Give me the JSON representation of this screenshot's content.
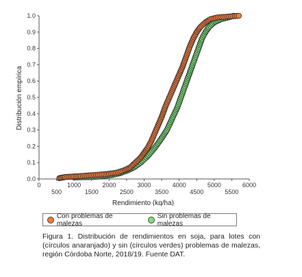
{
  "chart_data": {
    "type": "scatter",
    "title": "",
    "xlabel": "Rendimiento (kg/ha)",
    "ylabel": "Distribución empírica",
    "xlim": [
      0,
      6000
    ],
    "ylim": [
      0,
      1.0
    ],
    "x_ticks": [
      "0",
      "500",
      "1000",
      "1500",
      "2000",
      "2500",
      "3000",
      "3500",
      "4000",
      "4500",
      "5000",
      "5500",
      "6000"
    ],
    "y_ticks": [
      "0.0",
      "0.1",
      "0.2",
      "0.3",
      "0.4",
      "0.5",
      "0.6",
      "0.7",
      "0.8",
      "0.9",
      "1.0"
    ],
    "grid": false,
    "legend_position": "bottom",
    "series": [
      {
        "name": "Con problemas de malezas",
        "color": "#f07a3c",
        "points": [
          [
            580,
            0.005
          ],
          [
            650,
            0.008
          ],
          [
            760,
            0.012
          ],
          [
            1200,
            0.018
          ],
          [
            1950,
            0.03
          ],
          [
            2250,
            0.04
          ],
          [
            2450,
            0.055
          ],
          [
            2600,
            0.07
          ],
          [
            2700,
            0.09
          ],
          [
            2800,
            0.11
          ],
          [
            2900,
            0.13
          ],
          [
            3000,
            0.16
          ],
          [
            3100,
            0.19
          ],
          [
            3200,
            0.23
          ],
          [
            3300,
            0.28
          ],
          [
            3400,
            0.33
          ],
          [
            3500,
            0.38
          ],
          [
            3600,
            0.44
          ],
          [
            3700,
            0.49
          ],
          [
            3800,
            0.54
          ],
          [
            3900,
            0.59
          ],
          [
            4000,
            0.64
          ],
          [
            4100,
            0.69
          ],
          [
            4200,
            0.75
          ],
          [
            4300,
            0.81
          ],
          [
            4400,
            0.86
          ],
          [
            4500,
            0.9
          ],
          [
            4600,
            0.93
          ],
          [
            4750,
            0.96
          ],
          [
            4900,
            0.98
          ],
          [
            5100,
            0.99
          ],
          [
            5700,
            1.0
          ]
        ]
      },
      {
        "name": "Sin problemas de malezas",
        "color": "#7be07b",
        "points": [
          [
            1000,
            0.01
          ],
          [
            1500,
            0.012
          ],
          [
            1700,
            0.015
          ],
          [
            1900,
            0.02
          ],
          [
            2100,
            0.025
          ],
          [
            2300,
            0.035
          ],
          [
            2500,
            0.05
          ],
          [
            2700,
            0.07
          ],
          [
            2900,
            0.1
          ],
          [
            3100,
            0.14
          ],
          [
            3300,
            0.19
          ],
          [
            3500,
            0.25
          ],
          [
            3650,
            0.3
          ],
          [
            3800,
            0.37
          ],
          [
            3950,
            0.44
          ],
          [
            4050,
            0.5
          ],
          [
            4150,
            0.56
          ],
          [
            4250,
            0.62
          ],
          [
            4350,
            0.68
          ],
          [
            4450,
            0.74
          ],
          [
            4550,
            0.8
          ],
          [
            4650,
            0.86
          ],
          [
            4750,
            0.9
          ],
          [
            4850,
            0.93
          ],
          [
            5000,
            0.96
          ],
          [
            5200,
            0.98
          ],
          [
            5400,
            0.99
          ],
          [
            5550,
            1.0
          ]
        ]
      }
    ]
  },
  "caption": "Figura 1. Distribución de rendimientos en soja, para lotes con (círculos anaranjado) y sin (círculos verdes) problemas de malezas, región Córdoba Norte, 2018/19. Fuente DAT."
}
